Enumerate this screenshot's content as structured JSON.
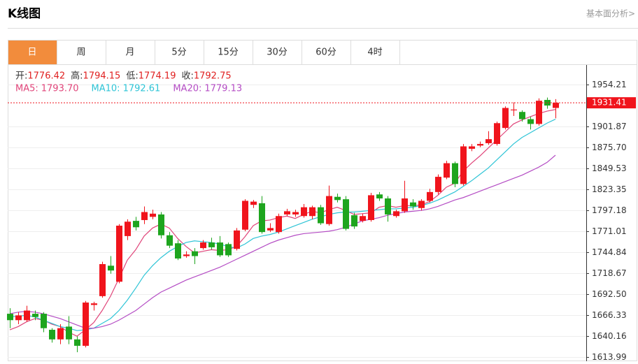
{
  "header": {
    "title": "K线图",
    "link": "基本面分析>"
  },
  "tabs": {
    "items": [
      "日",
      "周",
      "月",
      "5分",
      "15分",
      "30分",
      "60分",
      "4时"
    ],
    "active": 0
  },
  "chart_data": {
    "type": "candlestick",
    "info": [
      {
        "label": "开:",
        "value": 1776.42
      },
      {
        "label": "高:",
        "value": 1794.15
      },
      {
        "label": "低:",
        "value": 1774.19
      },
      {
        "label": "收:",
        "value": 1792.75
      }
    ],
    "up_color": "#f0141c",
    "down_color": "#1ea51e",
    "open": [
      1668,
      1660,
      1660,
      1668,
      1668,
      1648,
      1636,
      1652,
      1636,
      1628,
      1679,
      1690,
      1728,
      1708,
      1765,
      1784,
      1785,
      1789,
      1792,
      1766,
      1756,
      1740,
      1746,
      1750,
      1757,
      1757,
      1755,
      1749,
      1773,
      1804,
      1806,
      1772,
      1770,
      1792,
      1792,
      1790,
      1790,
      1801,
      1780,
      1814,
      1811,
      1791,
      1784,
      1785,
      1817,
      1812,
      1790,
      1796,
      1807,
      1800,
      1809,
      1820,
      1838,
      1856,
      1830,
      1874,
      1878,
      1881,
      1880,
      1900,
      1922,
      1920,
      1911,
      1905,
      1935,
      1925
    ],
    "high": [
      1675,
      1670,
      1678,
      1672,
      1670,
      1650,
      1655,
      1665,
      1640,
      1684,
      1683,
      1733,
      1740,
      1780,
      1786,
      1789,
      1802,
      1798,
      1795,
      1770,
      1760,
      1746,
      1750,
      1760,
      1763,
      1765,
      1757,
      1775,
      1811,
      1810,
      1815,
      1781,
      1793,
      1799,
      1798,
      1805,
      1803,
      1804,
      1828,
      1818,
      1815,
      1794,
      1793,
      1819,
      1820,
      1815,
      1798,
      1834,
      1811,
      1811,
      1824,
      1842,
      1859,
      1858,
      1880,
      1880,
      1883,
      1896,
      1908,
      1927,
      1932,
      1922,
      1914,
      1937,
      1938,
      1936
    ],
    "low": [
      1650,
      1655,
      1658,
      1660,
      1645,
      1632,
      1630,
      1630,
      1620,
      1626,
      1672,
      1688,
      1718,
      1706,
      1760,
      1772,
      1780,
      1786,
      1762,
      1750,
      1735,
      1738,
      1730,
      1748,
      1748,
      1739,
      1739,
      1747,
      1771,
      1800,
      1768,
      1770,
      1768,
      1790,
      1789,
      1788,
      1786,
      1779,
      1778,
      1807,
      1772,
      1774,
      1782,
      1783,
      1809,
      1783,
      1788,
      1794,
      1798,
      1797,
      1807,
      1817,
      1836,
      1826,
      1828,
      1871,
      1876,
      1879,
      1878,
      1898,
      1915,
      1908,
      1898,
      1903,
      1924,
      1912
    ],
    "close": [
      1660,
      1666,
      1672,
      1664,
      1650,
      1636,
      1650,
      1636,
      1628,
      1682,
      1681,
      1730,
      1722,
      1778,
      1783,
      1776,
      1795,
      1793,
      1766,
      1753,
      1737,
      1742,
      1740,
      1757,
      1751,
      1741,
      1741,
      1772,
      1809,
      1808,
      1770,
      1775,
      1790,
      1796,
      1795,
      1801,
      1801,
      1781,
      1815,
      1810,
      1774,
      1777,
      1790,
      1816,
      1812,
      1792,
      1796,
      1812,
      1802,
      1809,
      1820,
      1839,
      1856,
      1830,
      1877,
      1877,
      1880,
      1886,
      1906,
      1925,
      1923,
      1911,
      1905,
      1934,
      1928,
      1931.41
    ],
    "series": [
      {
        "label": "MA5:",
        "current": {
          "value": 1793.7,
          "label": "1793.70"
        },
        "color": "#e0457a",
        "values": [
          1648,
          1652,
          1658,
          1662,
          1660,
          1655,
          1652,
          1645,
          1640,
          1648,
          1657,
          1672,
          1690,
          1712,
          1735,
          1748,
          1765,
          1775,
          1780,
          1775,
          1762,
          1752,
          1744,
          1746,
          1748,
          1747,
          1748,
          1752,
          1764,
          1778,
          1784,
          1785,
          1788,
          1790,
          1787,
          1792,
          1796,
          1794,
          1798,
          1801,
          1797,
          1792,
          1793,
          1794,
          1801,
          1803,
          1801,
          1803,
          1803,
          1804,
          1808,
          1816,
          1826,
          1831,
          1846,
          1856,
          1865,
          1875,
          1885,
          1895,
          1905,
          1910,
          1914,
          1918,
          1921,
          1923
        ]
      },
      {
        "label": "MA10:",
        "current": 1792.61,
        "color": "#2ec4d6",
        "values": [
          1664,
          1665,
          1666,
          1664,
          1660,
          1656,
          1652,
          1650,
          1647,
          1648,
          1650,
          1656,
          1662,
          1672,
          1685,
          1700,
          1716,
          1728,
          1738,
          1746,
          1752,
          1757,
          1759,
          1758,
          1757,
          1755,
          1752,
          1750,
          1755,
          1762,
          1765,
          1767,
          1770,
          1774,
          1778,
          1782,
          1786,
          1789,
          1792,
          1794,
          1795,
          1795,
          1796,
          1797,
          1798,
          1799,
          1799,
          1800,
          1801,
          1803,
          1806,
          1810,
          1815,
          1820,
          1827,
          1834,
          1842,
          1850,
          1860,
          1870,
          1880,
          1888,
          1894,
          1900,
          1906,
          1911
        ]
      },
      {
        "label": "MA20:",
        "current": 1779.13,
        "color": "#b44cc4",
        "values": [
          1668,
          1670,
          1671,
          1670,
          1668,
          1665,
          1662,
          1658,
          1654,
          1650,
          1650,
          1652,
          1655,
          1660,
          1666,
          1672,
          1680,
          1688,
          1695,
          1700,
          1705,
          1710,
          1714,
          1718,
          1722,
          1726,
          1731,
          1736,
          1741,
          1746,
          1751,
          1756,
          1760,
          1763,
          1766,
          1768,
          1769,
          1770,
          1771,
          1773,
          1776,
          1780,
          1784,
          1786,
          1788,
          1791,
          1793,
          1795,
          1796,
          1797,
          1799,
          1802,
          1806,
          1810,
          1813,
          1817,
          1821,
          1825,
          1829,
          1833,
          1837,
          1841,
          1846,
          1851,
          1857,
          1866
        ]
      }
    ],
    "current_price": 1931.41,
    "ylim": [
      1608.76,
      1976.89
    ],
    "yticks": [
      1954.21,
      1901.87,
      {
        "value": 1875.7,
        "label": "1875.70"
      },
      1849.53,
      1823.35,
      1797.18,
      1771.01,
      1744.84,
      1718.67,
      {
        "value": 1692.5,
        "label": "1692.50"
      },
      1666.33,
      1640.16,
      1613.99
    ],
    "grid": true
  }
}
